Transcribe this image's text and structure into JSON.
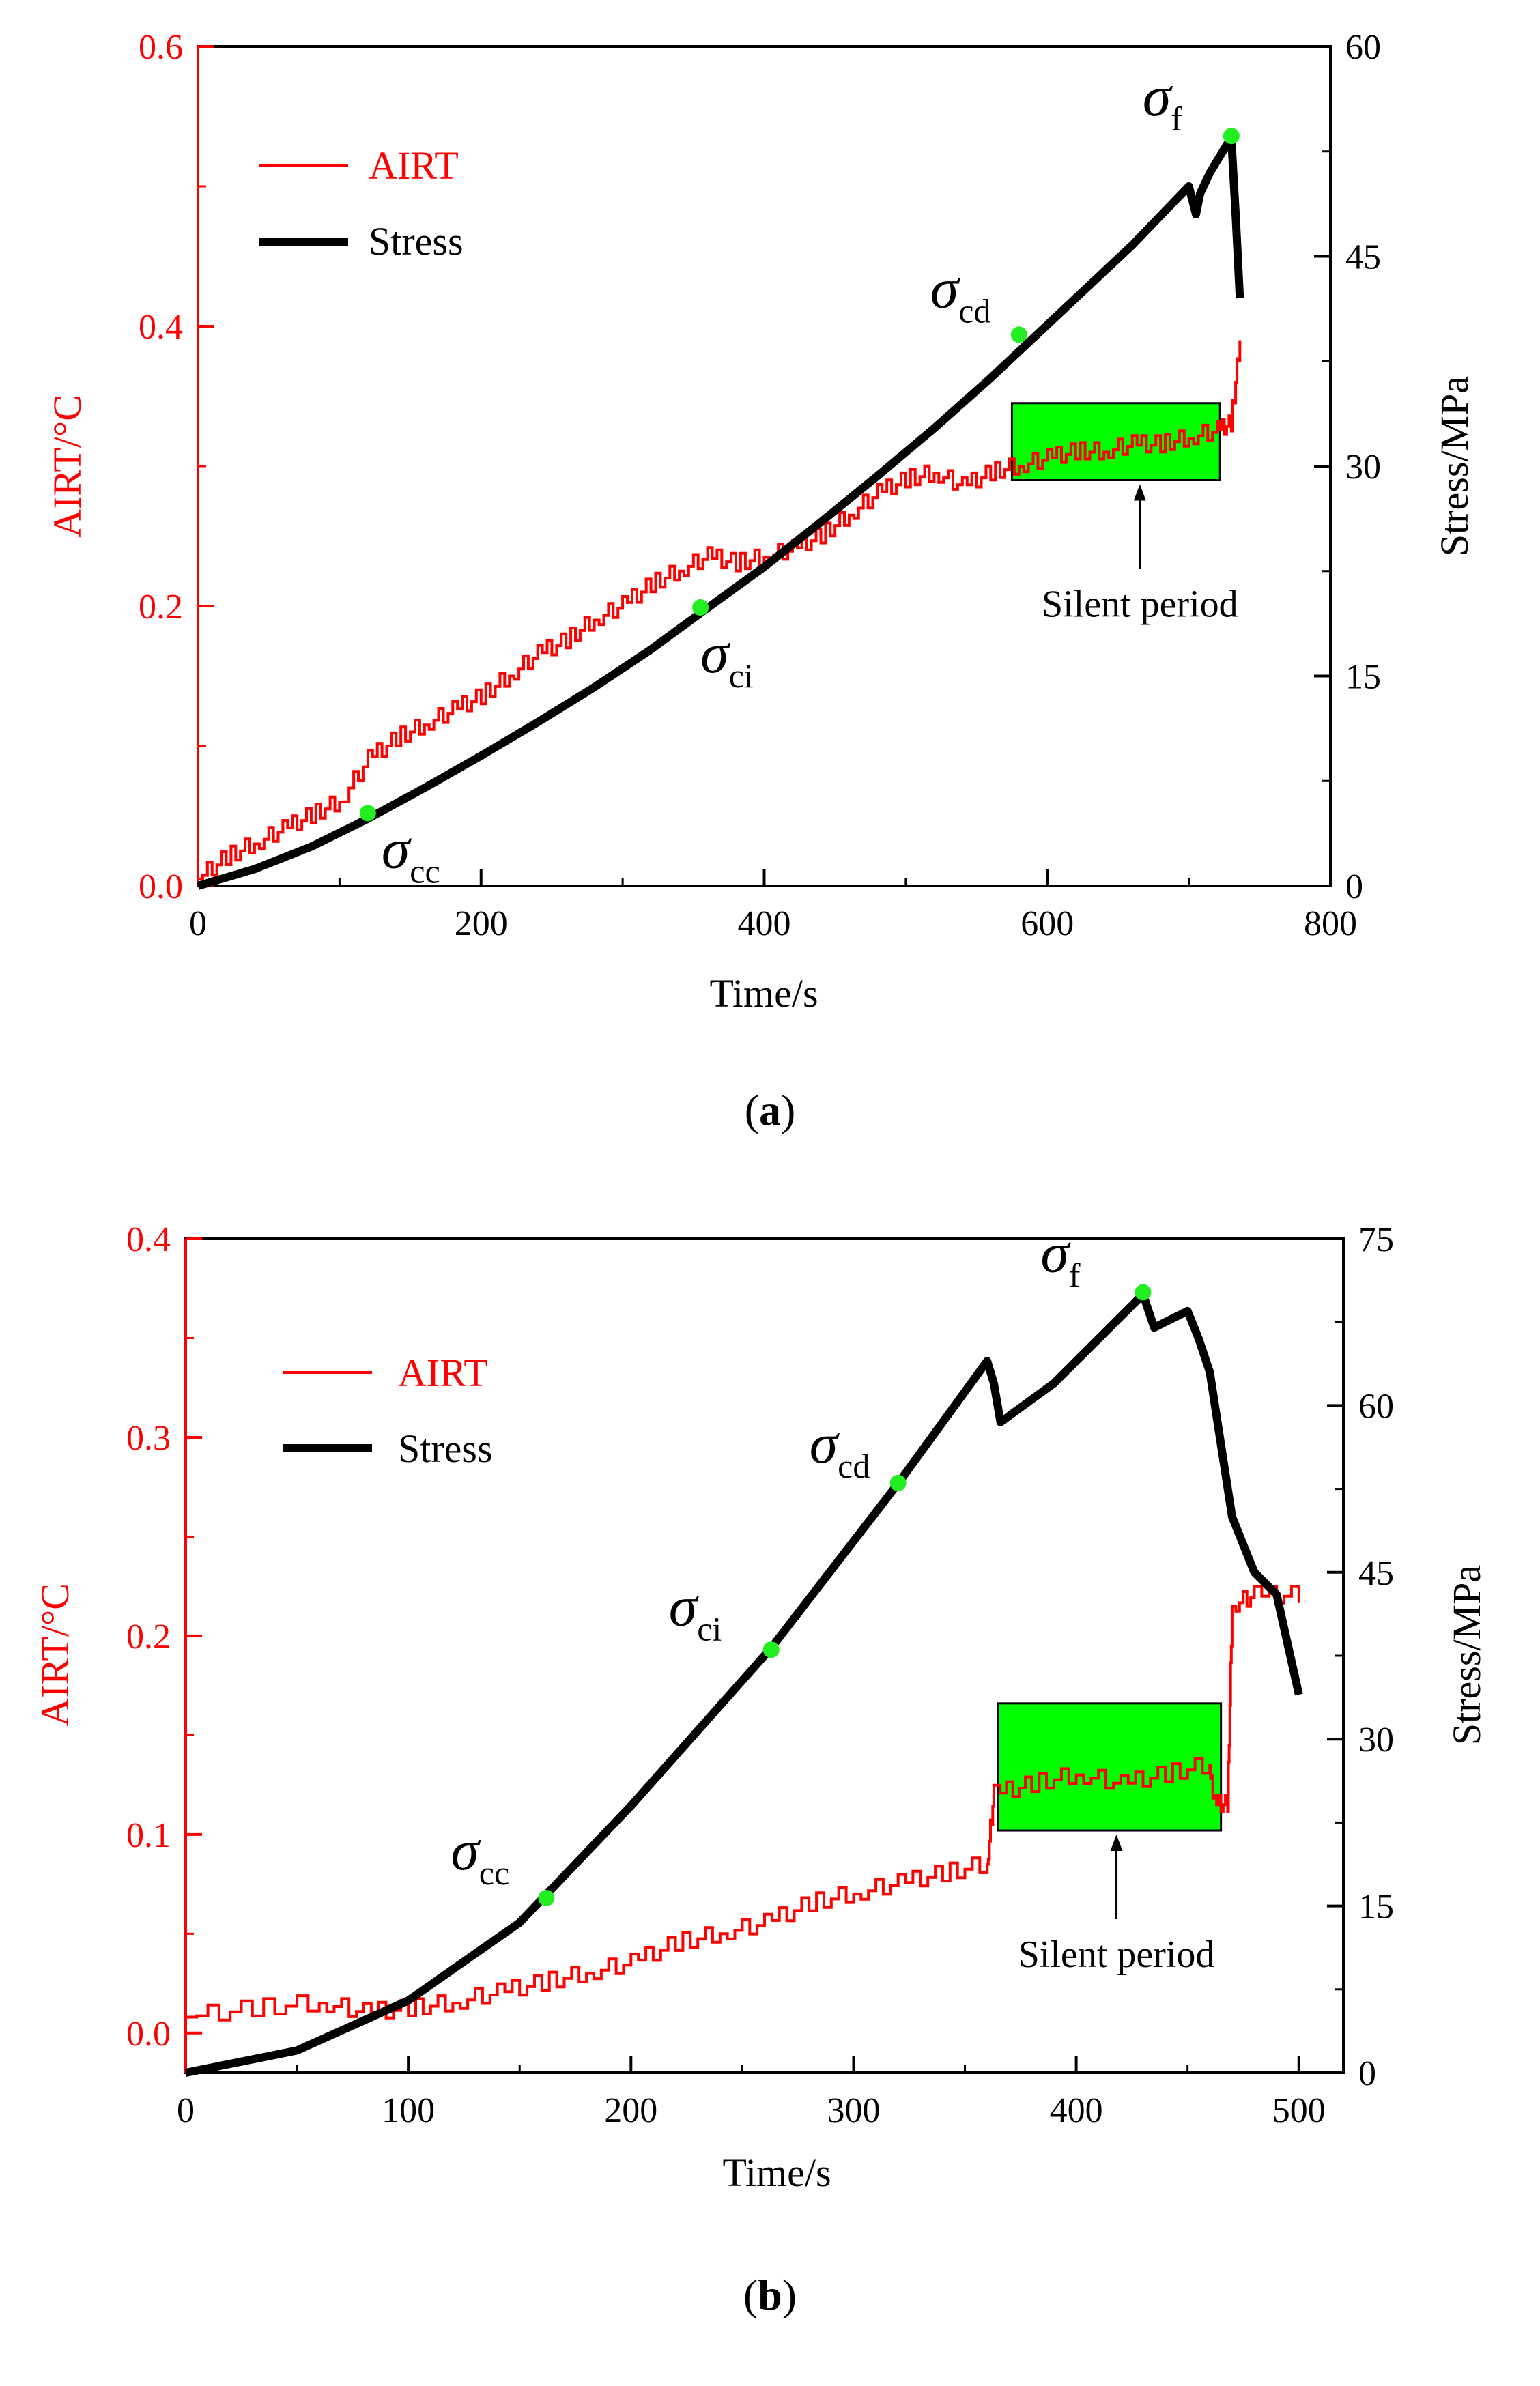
{
  "chart_data": [
    {
      "type": "line",
      "panel": "a",
      "caption": "(a)",
      "caption_letter": "a",
      "xlabel": "Time/s",
      "ylabel_left": "AIRT/°C",
      "ylabel_right": "Stress/MPa",
      "xlim": [
        0,
        800
      ],
      "xticks": [
        0,
        200,
        400,
        600,
        800
      ],
      "ylim_left": [
        0,
        0.6
      ],
      "yticks_left": [
        "0.0",
        "0.2",
        "0.4",
        "0.6"
      ],
      "ylim_right": [
        0,
        60
      ],
      "yticks_right": [
        0,
        15,
        30,
        45,
        60
      ],
      "legend": [
        {
          "name": "AIRT",
          "color": "#ff0000"
        },
        {
          "name": "Stress",
          "color": "#000000"
        }
      ],
      "series": [
        {
          "name": "AIRT",
          "axis": "left",
          "color": "#ff0000",
          "x": [
            0,
            20,
            40,
            60,
            80,
            100,
            120,
            140,
            160,
            180,
            200,
            220,
            240,
            260,
            280,
            300,
            320,
            340,
            360,
            380,
            400,
            420,
            440,
            460,
            480,
            500,
            520,
            540,
            560,
            580,
            600,
            620,
            640,
            660,
            680,
            700,
            720,
            730,
            736
          ],
          "values": [
            0.005,
            0.02,
            0.03,
            0.04,
            0.05,
            0.06,
            0.09,
            0.105,
            0.115,
            0.125,
            0.135,
            0.15,
            0.165,
            0.175,
            0.19,
            0.2,
            0.215,
            0.225,
            0.235,
            0.23,
            0.235,
            0.24,
            0.25,
            0.265,
            0.28,
            0.29,
            0.295,
            0.285,
            0.295,
            0.3,
            0.305,
            0.31,
            0.31,
            0.315,
            0.315,
            0.32,
            0.325,
            0.33,
            0.39
          ]
        },
        {
          "name": "Stress",
          "axis": "right",
          "color": "#000000",
          "x": [
            0,
            40,
            80,
            120,
            160,
            200,
            240,
            280,
            320,
            355,
            400,
            440,
            480,
            520,
            560,
            580,
            620,
            660,
            700,
            705,
            708,
            715,
            730,
            733,
            736
          ],
          "values": [
            0,
            1.2,
            2.8,
            4.8,
            7.0,
            9.3,
            11.7,
            14.2,
            16.9,
            19.5,
            22.8,
            26.0,
            29.3,
            32.7,
            36.3,
            38.2,
            42.0,
            45.8,
            50.0,
            48.0,
            49.5,
            51.0,
            53.5,
            48.0,
            42.0
          ]
        }
      ],
      "markers": [
        {
          "label": "σ",
          "sub": "cc",
          "x": 120,
          "y": 0.052
        },
        {
          "label": "σ",
          "sub": "ci",
          "x": 355,
          "y": 0.199
        },
        {
          "label": "σ",
          "sub": "cd",
          "x": 580,
          "y": 0.394
        },
        {
          "label": "σ",
          "sub": "f",
          "x": 730,
          "y": 0.536
        }
      ],
      "annotation": {
        "text": "Silent period",
        "x0": 575,
        "x1": 722,
        "y0": 0.29,
        "y1": 0.345
      }
    },
    {
      "type": "line",
      "panel": "b",
      "caption": "(b)",
      "caption_letter": "b",
      "xlabel": "Time/s",
      "ylabel_left": "AIRT/°C",
      "ylabel_right": "Stress/MPa",
      "xlim": [
        0,
        520
      ],
      "xticks": [
        0,
        100,
        200,
        300,
        400,
        500
      ],
      "ylim_left": [
        -0.02,
        0.4
      ],
      "yticks_left": [
        "0.0",
        "0.1",
        "0.2",
        "0.3",
        "0.4"
      ],
      "ylim_right": [
        0,
        75
      ],
      "yticks_right": [
        0,
        15,
        30,
        45,
        60,
        75
      ],
      "legend": [
        {
          "name": "AIRT",
          "color": "#ff0000"
        },
        {
          "name": "Stress",
          "color": "#000000"
        }
      ],
      "series": [
        {
          "name": "AIRT",
          "axis": "left",
          "color": "#ff0000",
          "x": [
            0,
            30,
            60,
            80,
            100,
            120,
            140,
            160,
            180,
            200,
            220,
            240,
            260,
            280,
            300,
            320,
            340,
            360,
            363,
            380,
            400,
            420,
            440,
            460,
            462,
            468,
            470,
            480,
            500
          ],
          "values": [
            0.008,
            0.012,
            0.015,
            0.01,
            0.012,
            0.015,
            0.02,
            0.025,
            0.03,
            0.035,
            0.045,
            0.05,
            0.055,
            0.065,
            0.07,
            0.075,
            0.08,
            0.085,
            0.12,
            0.125,
            0.13,
            0.125,
            0.13,
            0.135,
            0.115,
            0.115,
            0.215,
            0.22,
            0.22
          ]
        },
        {
          "name": "Stress",
          "axis": "right",
          "color": "#000000",
          "x": [
            0,
            50,
            100,
            150,
            200,
            263,
            320,
            360,
            363,
            366,
            390,
            430,
            435,
            450,
            455,
            460,
            470,
            480,
            490,
            500
          ],
          "values": [
            0,
            2.0,
            6.5,
            13.5,
            24.0,
            38.2,
            53.0,
            64.0,
            62.0,
            58.5,
            62.0,
            70.0,
            67.0,
            68.5,
            66.0,
            63.0,
            50.0,
            45.0,
            43.0,
            34.0
          ]
        }
      ],
      "markers": [
        {
          "label": "σ",
          "sub": "cc",
          "x": 162,
          "y": 0.068
        },
        {
          "label": "σ",
          "sub": "ci",
          "x": 263,
          "y": 0.193
        },
        {
          "label": "σ",
          "sub": "cd",
          "x": 320,
          "y": 0.277
        },
        {
          "label": "σ",
          "sub": "f",
          "x": 430,
          "y": 0.373
        }
      ],
      "annotation": {
        "text": "Silent period",
        "x0": 365,
        "x1": 465,
        "y0": 0.102,
        "y1": 0.166
      }
    }
  ]
}
